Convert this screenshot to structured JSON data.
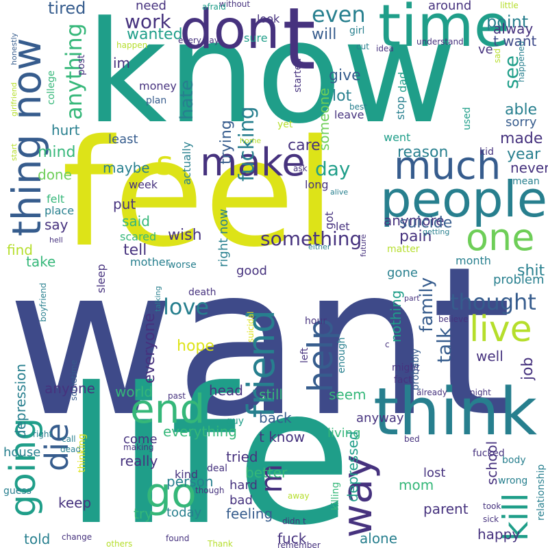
{
  "palette": {
    "navy": "#3e4a89",
    "indigo": "#46327e",
    "blue": "#365c8d",
    "teal": "#277f8e",
    "cyan": "#1f9e89",
    "green": "#35b779",
    "lime": "#6ece58",
    "yellow": "#dde318",
    "gold": "#b5de2b",
    "background": "#ffffff"
  },
  "words": [
    {
      "text": "want",
      "color": "navy"
    },
    {
      "text": "life",
      "color": "cyan"
    },
    {
      "text": "know",
      "color": "cyan"
    },
    {
      "text": "feel",
      "color": "yellow"
    },
    {
      "text": "think",
      "color": "teal"
    },
    {
      "text": "don",
      "color": "indigo"
    },
    {
      "text": "t",
      "color": "indigo"
    },
    {
      "text": "time",
      "color": "cyan"
    },
    {
      "text": "now",
      "color": "blue"
    },
    {
      "text": "thing",
      "color": "blue"
    },
    {
      "text": "people",
      "color": "teal"
    },
    {
      "text": "much",
      "color": "blue"
    },
    {
      "text": "make",
      "color": "indigo"
    },
    {
      "text": "one",
      "color": "lime"
    },
    {
      "text": "live",
      "color": "gold"
    },
    {
      "text": "end",
      "color": "green"
    },
    {
      "text": "go",
      "color": "green"
    },
    {
      "text": "going",
      "color": "cyan"
    },
    {
      "text": "die",
      "color": "blue"
    },
    {
      "text": "way",
      "color": "indigo"
    },
    {
      "text": "kill",
      "color": "cyan"
    },
    {
      "text": "friend",
      "color": "teal"
    },
    {
      "text": "help",
      "color": "blue"
    },
    {
      "text": "s",
      "color": "yellow"
    },
    {
      "text": "m",
      "color": "indigo"
    },
    {
      "text": "even",
      "color": "teal"
    },
    {
      "text": "work",
      "color": "indigo"
    },
    {
      "text": "tired",
      "color": "blue"
    },
    {
      "text": "need",
      "color": "indigo"
    },
    {
      "text": "wanted",
      "color": "cyan"
    },
    {
      "text": "anything",
      "color": "green"
    },
    {
      "text": "will",
      "color": "blue"
    },
    {
      "text": "see",
      "color": "cyan"
    },
    {
      "text": "point",
      "color": "teal"
    },
    {
      "text": "alway",
      "color": "indigo"
    },
    {
      "text": "t want",
      "color": "navy"
    },
    {
      "text": "ve",
      "color": "indigo"
    },
    {
      "text": "around",
      "color": "indigo"
    },
    {
      "text": "give",
      "color": "blue"
    },
    {
      "text": "lot",
      "color": "teal"
    },
    {
      "text": "im",
      "color": "indigo"
    },
    {
      "text": "hate",
      "color": "teal"
    },
    {
      "text": "trying",
      "color": "blue"
    },
    {
      "text": "fucking",
      "color": "teal"
    },
    {
      "text": "someone",
      "color": "lime"
    },
    {
      "text": "able",
      "color": "teal"
    },
    {
      "text": "sorry",
      "color": "blue"
    },
    {
      "text": "made",
      "color": "indigo"
    },
    {
      "text": "year",
      "color": "teal"
    },
    {
      "text": "never",
      "color": "indigo"
    },
    {
      "text": "care",
      "color": "indigo"
    },
    {
      "text": "reason",
      "color": "teal"
    },
    {
      "text": "hurt",
      "color": "teal"
    },
    {
      "text": "mind",
      "color": "green"
    },
    {
      "text": "least",
      "color": "blue"
    },
    {
      "text": "done",
      "color": "lime"
    },
    {
      "text": "maybe",
      "color": "teal"
    },
    {
      "text": "day",
      "color": "cyan"
    },
    {
      "text": "put",
      "color": "indigo"
    },
    {
      "text": "said",
      "color": "green"
    },
    {
      "text": "say",
      "color": "indigo"
    },
    {
      "text": "tell",
      "color": "indigo"
    },
    {
      "text": "wish",
      "color": "indigo"
    },
    {
      "text": "love",
      "color": "teal"
    },
    {
      "text": "something",
      "color": "indigo"
    },
    {
      "text": "anymore",
      "color": "indigo"
    },
    {
      "text": "suicide",
      "color": "blue"
    },
    {
      "text": "pain",
      "color": "indigo"
    },
    {
      "text": "find",
      "color": "gold"
    },
    {
      "text": "take",
      "color": "green"
    },
    {
      "text": "thought",
      "color": "blue"
    },
    {
      "text": "family",
      "color": "blue"
    },
    {
      "text": "talk",
      "color": "blue"
    },
    {
      "text": "shit",
      "color": "teal"
    },
    {
      "text": "problem",
      "color": "teal"
    },
    {
      "text": "hope",
      "color": "yellow"
    },
    {
      "text": "everyone",
      "color": "indigo"
    },
    {
      "text": "nothing",
      "color": "cyan"
    },
    {
      "text": "well",
      "color": "indigo"
    },
    {
      "text": "job",
      "color": "indigo"
    },
    {
      "text": "anyone",
      "color": "indigo"
    },
    {
      "text": "world",
      "color": "green"
    },
    {
      "text": "head",
      "color": "indigo"
    },
    {
      "text": "still",
      "color": "green"
    },
    {
      "text": "seem",
      "color": "green"
    },
    {
      "text": "back",
      "color": "blue"
    },
    {
      "text": "t know",
      "color": "indigo"
    },
    {
      "text": "everything",
      "color": "green"
    },
    {
      "text": "really",
      "color": "indigo"
    },
    {
      "text": "better",
      "color": "green"
    },
    {
      "text": "tried",
      "color": "indigo"
    },
    {
      "text": "person",
      "color": "teal"
    },
    {
      "text": "feeling",
      "color": "blue"
    },
    {
      "text": "school",
      "color": "indigo"
    },
    {
      "text": "parent",
      "color": "indigo"
    },
    {
      "text": "happy",
      "color": "indigo"
    },
    {
      "text": "alone",
      "color": "teal"
    },
    {
      "text": "fuck",
      "color": "indigo"
    },
    {
      "text": "told",
      "color": "teal"
    },
    {
      "text": "keep",
      "color": "indigo"
    },
    {
      "text": "try",
      "color": "green"
    },
    {
      "text": "today",
      "color": "teal"
    },
    {
      "text": "depression",
      "color": "teal"
    },
    {
      "text": "house",
      "color": "teal"
    },
    {
      "text": "mom",
      "color": "green"
    },
    {
      "text": "living",
      "color": "green"
    },
    {
      "text": "anyway",
      "color": "indigo"
    },
    {
      "text": "good",
      "color": "indigo"
    },
    {
      "text": "gone",
      "color": "teal"
    },
    {
      "text": "month",
      "color": "teal"
    },
    {
      "text": "lost",
      "color": "indigo"
    },
    {
      "text": "kind",
      "color": "indigo"
    },
    {
      "text": "hard",
      "color": "indigo"
    },
    {
      "text": "bad",
      "color": "indigo"
    },
    {
      "text": "come",
      "color": "indigo"
    },
    {
      "text": "depressed",
      "color": "cyan"
    },
    {
      "text": "guy",
      "color": "cyan"
    },
    {
      "text": "mother",
      "color": "teal"
    },
    {
      "text": "sleep",
      "color": "indigo"
    },
    {
      "text": "scared",
      "color": "green"
    },
    {
      "text": "felt",
      "color": "green"
    },
    {
      "text": "place",
      "color": "teal"
    },
    {
      "text": "got",
      "color": "indigo"
    },
    {
      "text": "let",
      "color": "indigo"
    },
    {
      "text": "long",
      "color": "indigo"
    },
    {
      "text": "right now",
      "color": "teal"
    },
    {
      "text": "week",
      "color": "indigo"
    },
    {
      "text": "actually",
      "color": "teal"
    },
    {
      "text": "money",
      "color": "indigo"
    },
    {
      "text": "plan",
      "color": "blue"
    },
    {
      "text": "college",
      "color": "green"
    },
    {
      "text": "post",
      "color": "indigo"
    },
    {
      "text": "leave",
      "color": "indigo"
    },
    {
      "text": "stop",
      "color": "teal"
    },
    {
      "text": "dad",
      "color": "cyan"
    },
    {
      "text": "started",
      "color": "indigo"
    },
    {
      "text": "sure",
      "color": "cyan"
    },
    {
      "text": "look",
      "color": "indigo"
    },
    {
      "text": "girl",
      "color": "teal"
    },
    {
      "text": "cut",
      "color": "teal"
    },
    {
      "text": "kid",
      "color": "indigo"
    },
    {
      "text": "went",
      "color": "cyan"
    },
    {
      "text": "used",
      "color": "cyan"
    },
    {
      "text": "mean",
      "color": "teal"
    },
    {
      "text": "yet",
      "color": "gold"
    },
    {
      "text": "best",
      "color": "teal"
    },
    {
      "text": "without",
      "color": "indigo"
    },
    {
      "text": "afraid",
      "color": "cyan"
    },
    {
      "text": "every day",
      "color": "indigo"
    },
    {
      "text": "happen",
      "color": "gold"
    },
    {
      "text": "little",
      "color": "gold"
    },
    {
      "text": "understand",
      "color": "indigo"
    },
    {
      "text": "idea",
      "color": "indigo"
    },
    {
      "text": "happened",
      "color": "teal"
    },
    {
      "text": "sad",
      "color": "gold"
    },
    {
      "text": "honestly",
      "color": "blue"
    },
    {
      "text": "girlfriend",
      "color": "gold"
    },
    {
      "text": "start",
      "color": "gold"
    },
    {
      "text": "home",
      "color": "gold"
    },
    {
      "text": "ask",
      "color": "indigo"
    },
    {
      "text": "alive",
      "color": "teal"
    },
    {
      "text": "future",
      "color": "indigo"
    },
    {
      "text": "either",
      "color": "teal"
    },
    {
      "text": "hell",
      "color": "indigo"
    },
    {
      "text": "worse",
      "color": "teal"
    },
    {
      "text": "matter",
      "color": "gold"
    },
    {
      "text": "getting",
      "color": "teal"
    },
    {
      "text": "death",
      "color": "indigo"
    },
    {
      "text": "talking",
      "color": "teal"
    },
    {
      "text": "part",
      "color": "indigo"
    },
    {
      "text": "hour",
      "color": "indigo"
    },
    {
      "text": "believe",
      "color": "indigo"
    },
    {
      "text": "boyfriend",
      "color": "teal"
    },
    {
      "text": "suicidal",
      "color": "yellow"
    },
    {
      "text": "left",
      "color": "indigo"
    },
    {
      "text": "enough",
      "color": "teal"
    },
    {
      "text": "c",
      "color": "indigo"
    },
    {
      "text": "might",
      "color": "indigo"
    },
    {
      "text": "probably",
      "color": "blue"
    },
    {
      "text": "fact",
      "color": "indigo"
    },
    {
      "text": "already",
      "color": "indigo"
    },
    {
      "text": "night",
      "color": "indigo"
    },
    {
      "text": "sometime",
      "color": "blue"
    },
    {
      "text": "past",
      "color": "indigo"
    },
    {
      "text": "call",
      "color": "teal"
    },
    {
      "text": "right",
      "color": "teal"
    },
    {
      "text": "dead",
      "color": "teal"
    },
    {
      "text": "making",
      "color": "indigo"
    },
    {
      "text": "deal",
      "color": "indigo"
    },
    {
      "text": "thinking",
      "color": "yellow"
    },
    {
      "text": "though",
      "color": "indigo"
    },
    {
      "text": "away",
      "color": "gold"
    },
    {
      "text": "guess",
      "color": "teal"
    },
    {
      "text": "killing",
      "color": "green"
    },
    {
      "text": "didn t",
      "color": "indigo"
    },
    {
      "text": "remember",
      "color": "indigo"
    },
    {
      "text": "change",
      "color": "indigo"
    },
    {
      "text": "found",
      "color": "indigo"
    },
    {
      "text": "others",
      "color": "gold"
    },
    {
      "text": "Thank",
      "color": "gold"
    },
    {
      "text": "bed",
      "color": "indigo"
    },
    {
      "text": "fucked",
      "color": "indigo"
    },
    {
      "text": "body",
      "color": "teal"
    },
    {
      "text": "wrong",
      "color": "teal"
    },
    {
      "text": "took",
      "color": "indigo"
    },
    {
      "text": "sick",
      "color": "indigo"
    },
    {
      "text": "relationship",
      "color": "teal"
    }
  ]
}
